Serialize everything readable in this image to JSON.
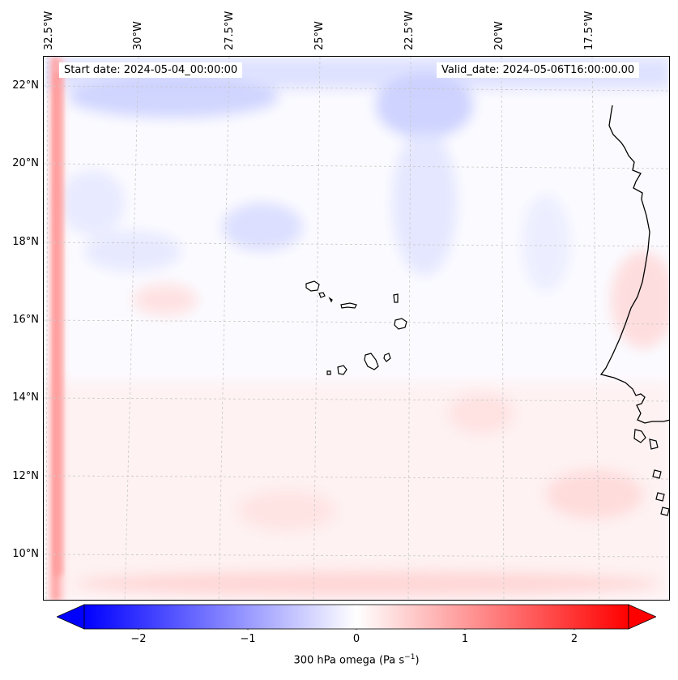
{
  "map": {
    "start_date_label": "Start date: 2024-05-04_00:00:00",
    "valid_date_label": "Valid_date: 2024-05-06T16:00:00.00",
    "longitude_labels": [
      "32.5°W",
      "30°W",
      "27.5°W",
      "25°W",
      "22.5°W",
      "20°W",
      "17.5°W"
    ],
    "latitude_labels": [
      "22°N",
      "20°N",
      "18°N",
      "16°N",
      "14°N",
      "12°N",
      "10°N"
    ],
    "extent": {
      "lon_min": -33.0,
      "lon_max": -15.5,
      "lat_min": 8.8,
      "lat_max": 22.8
    },
    "islands": [
      "Santo Antão",
      "São Vicente",
      "Santa Luzia",
      "São Nicolau",
      "Sal",
      "Boa Vista",
      "Maio",
      "Santiago",
      "Fogo",
      "Brava"
    ],
    "coastline": "West Africa coast (Mauritania, Senegal, The Gambia, Guinea-Bissau)"
  },
  "colorbar": {
    "label": "300 hPa omega (Pa s",
    "label_exponent": "−1",
    "label_close": ")",
    "ticks": [
      "−2",
      "−1",
      "0",
      "1",
      "2"
    ],
    "tick_values": [
      -2,
      -1,
      0,
      1,
      2
    ],
    "range": [
      -2.6,
      2.6
    ],
    "colormap": "bwr",
    "low_color": "#0000ff",
    "mid_color": "#ffffff",
    "high_color": "#ff0000"
  }
}
